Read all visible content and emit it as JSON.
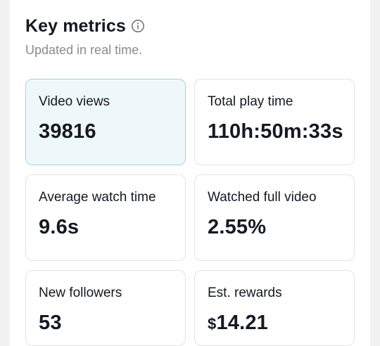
{
  "header": {
    "title": "Key metrics",
    "subtitle": "Updated in real time."
  },
  "metrics": [
    {
      "label": "Video views",
      "value": "39816",
      "selected": true
    },
    {
      "label": "Total play time",
      "value": "110h:50m:33s",
      "selected": false
    },
    {
      "label": "Average watch time",
      "value": "9.6s",
      "selected": false
    },
    {
      "label": "Watched full video",
      "value": "2.55%",
      "selected": false
    },
    {
      "label": "New followers",
      "value": "53",
      "selected": false
    },
    {
      "label": "Est. rewards",
      "currency": "$",
      "value": "14.21",
      "selected": false
    }
  ],
  "colors": {
    "selected_bg": "#eef8fb",
    "selected_border": "#9fd4e4",
    "muted_text": "#8a8b91"
  },
  "icons": {
    "title_info": "info-icon"
  }
}
